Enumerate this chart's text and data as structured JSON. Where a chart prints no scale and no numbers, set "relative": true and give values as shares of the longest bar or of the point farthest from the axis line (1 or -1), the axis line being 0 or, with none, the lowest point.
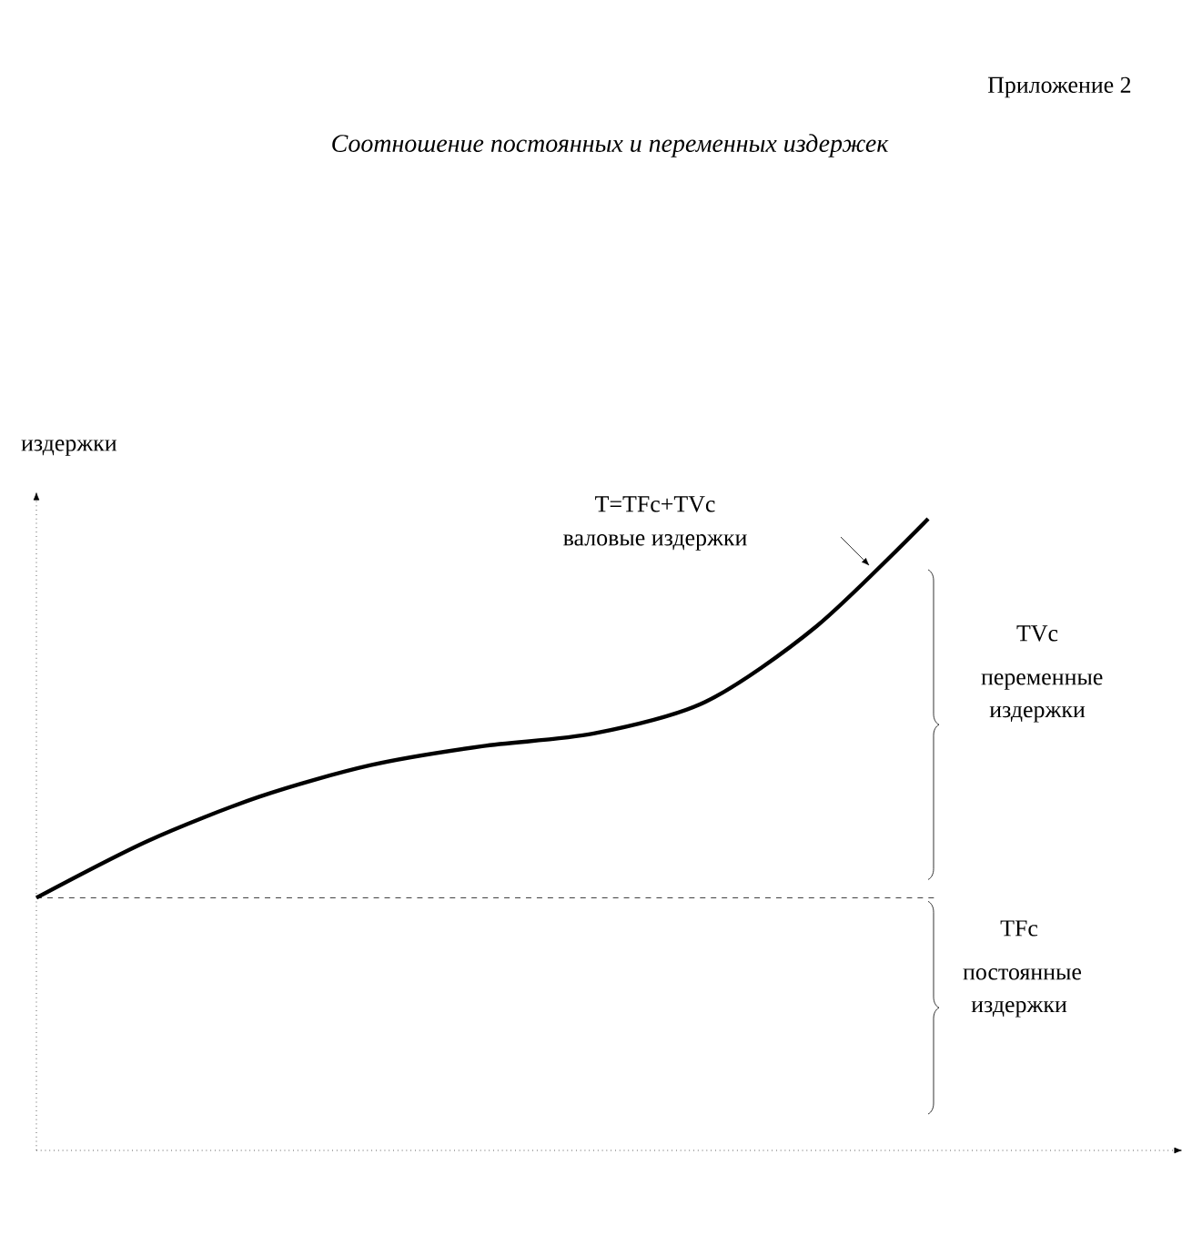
{
  "chart_data": {
    "type": "line",
    "relative": true,
    "title": "Соотношение постоянных и переменных издержек",
    "ylabel": "издержки",
    "categories": [
      null,
      null,
      null,
      null,
      null,
      null,
      null,
      null,
      null
    ],
    "series": [
      {
        "color": "#000000",
        "values": [
          0.4,
          0.49,
          0.56,
          0.61,
          0.64,
          0.66,
          0.71,
          0.83,
          1.0
        ]
      }
    ],
    "ref_lines": [
      {
        "axis": "y",
        "value": 0.4,
        "line_style": "dashed"
      }
    ],
    "annotations": [
      "Приложение 2",
      "T=TFc+TVc",
      "валовые издержки",
      "TVc",
      "переменные издержки",
      "TFc",
      "постоянные издержки"
    ],
    "marker": "none",
    "line_style": "solid"
  }
}
